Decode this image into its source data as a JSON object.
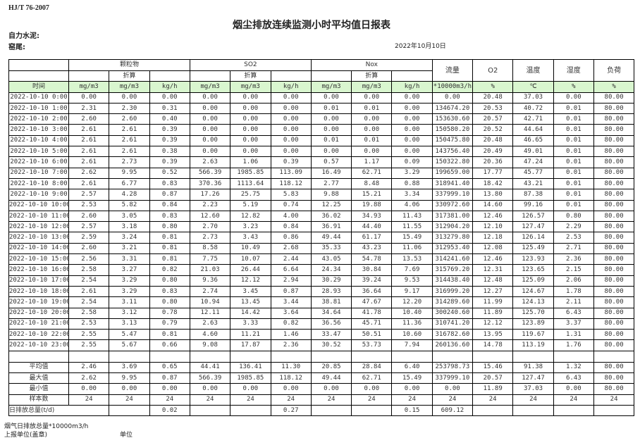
{
  "header": {
    "standard": "HJ/T  76-2007",
    "title": "烟尘排放连续监测小时平均值日报表",
    "company": "自力水泥:",
    "kiln": "窑尾:",
    "date": "2022年10月10日"
  },
  "groups": [
    "颗粒物",
    "SO2",
    "Nox"
  ],
  "converted_label": "折算",
  "single_columns": [
    "流量",
    "O2",
    "温度",
    "湿度",
    "负荷"
  ],
  "units": [
    "时间",
    "mg/m3",
    "mg/m3",
    "kg/h",
    "mg/m3",
    "mg/m3",
    "kg/h",
    "mg/m3",
    "mg/m3",
    "kg/h",
    "*10000m3/h",
    "%",
    "℃",
    "%",
    "%"
  ],
  "rows": [
    [
      "2022-10-10 0:00",
      "0.00",
      "0.00",
      "0.00",
      "0.00",
      "0.00",
      "0.00",
      "0.00",
      "0.00",
      "0.00",
      "0.00",
      "20.48",
      "37.03",
      "0.00",
      "80.00"
    ],
    [
      "2022-10-10 1:00",
      "2.31",
      "2.30",
      "0.31",
      "0.00",
      "0.00",
      "0.00",
      "0.01",
      "0.01",
      "0.00",
      "134674.20",
      "20.53",
      "40.72",
      "0.01",
      "80.00"
    ],
    [
      "2022-10-10 2:00",
      "2.60",
      "2.60",
      "0.40",
      "0.00",
      "0.00",
      "0.00",
      "0.00",
      "0.00",
      "0.00",
      "153630.60",
      "20.57",
      "42.71",
      "0.01",
      "80.00"
    ],
    [
      "2022-10-10 3:00",
      "2.61",
      "2.61",
      "0.39",
      "0.00",
      "0.00",
      "0.00",
      "0.00",
      "0.00",
      "0.00",
      "150580.20",
      "20.52",
      "44.64",
      "0.01",
      "80.00"
    ],
    [
      "2022-10-10 4:00",
      "2.61",
      "2.61",
      "0.39",
      "0.00",
      "0.00",
      "0.00",
      "0.01",
      "0.01",
      "0.00",
      "150475.80",
      "20.48",
      "46.65",
      "0.01",
      "80.00"
    ],
    [
      "2022-10-10 5:00",
      "2.61",
      "2.61",
      "0.38",
      "0.00",
      "0.00",
      "0.00",
      "0.00",
      "0.00",
      "0.00",
      "143756.40",
      "20.49",
      "49.01",
      "0.01",
      "80.00"
    ],
    [
      "2022-10-10 6:00",
      "2.61",
      "2.73",
      "0.39",
      "2.63",
      "1.06",
      "0.39",
      "0.57",
      "1.17",
      "0.09",
      "150322.80",
      "20.36",
      "47.24",
      "0.01",
      "80.00"
    ],
    [
      "2022-10-10 7:00",
      "2.62",
      "9.95",
      "0.52",
      "566.39",
      "1985.85",
      "113.09",
      "16.49",
      "62.71",
      "3.29",
      "199659.00",
      "17.77",
      "45.77",
      "0.01",
      "80.00"
    ],
    [
      "2022-10-10 8:00",
      "2.61",
      "6.77",
      "0.83",
      "370.36",
      "1113.64",
      "118.12",
      "2.77",
      "8.48",
      "0.88",
      "318941.40",
      "18.42",
      "43.21",
      "0.01",
      "80.00"
    ],
    [
      "2022-10-10 9:00",
      "2.57",
      "4.28",
      "0.87",
      "17.26",
      "25.75",
      "5.83",
      "9.88",
      "15.21",
      "3.34",
      "337999.10",
      "13.80",
      "87.38",
      "0.01",
      "80.00"
    ],
    [
      "2022-10-10 10:00",
      "2.53",
      "5.82",
      "0.84",
      "2.23",
      "5.19",
      "0.74",
      "12.25",
      "19.88",
      "4.06",
      "330972.60",
      "14.60",
      "99.16",
      "0.01",
      "80.00"
    ],
    [
      "2022-10-10 11:00",
      "2.60",
      "3.05",
      "0.83",
      "12.60",
      "12.82",
      "4.00",
      "36.02",
      "34.93",
      "11.43",
      "317381.00",
      "12.46",
      "126.57",
      "0.80",
      "80.00"
    ],
    [
      "2022-10-10 12:00",
      "2.57",
      "3.18",
      "0.80",
      "2.70",
      "3.23",
      "0.84",
      "36.91",
      "44.40",
      "11.55",
      "312904.20",
      "12.10",
      "127.47",
      "2.29",
      "80.00"
    ],
    [
      "2022-10-10 13:00",
      "2.59",
      "3.24",
      "0.81",
      "2.73",
      "3.43",
      "0.86",
      "49.44",
      "61.17",
      "15.49",
      "313279.80",
      "12.18",
      "126.14",
      "2.53",
      "80.00"
    ],
    [
      "2022-10-10 14:00",
      "2.60",
      "3.21",
      "0.81",
      "8.58",
      "10.49",
      "2.68",
      "35.33",
      "43.23",
      "11.06",
      "312953.40",
      "12.08",
      "125.49",
      "2.71",
      "80.00"
    ],
    [
      "2022-10-10 15:00",
      "2.56",
      "3.31",
      "0.81",
      "7.75",
      "10.07",
      "2.44",
      "43.05",
      "54.78",
      "13.53",
      "314241.60",
      "12.46",
      "123.93",
      "2.36",
      "80.00"
    ],
    [
      "2022-10-10 16:00",
      "2.58",
      "3.27",
      "0.82",
      "21.03",
      "26.44",
      "6.64",
      "24.34",
      "30.84",
      "7.69",
      "315769.20",
      "12.31",
      "123.65",
      "2.15",
      "80.00"
    ],
    [
      "2022-10-10 17:00",
      "2.54",
      "3.29",
      "0.80",
      "9.36",
      "12.12",
      "2.94",
      "30.29",
      "39.24",
      "9.53",
      "314438.40",
      "12.48",
      "125.09",
      "2.06",
      "80.00"
    ],
    [
      "2022-10-10 18:00",
      "2.61",
      "3.29",
      "0.83",
      "2.74",
      "3.45",
      "0.87",
      "28.93",
      "36.64",
      "9.17",
      "316999.20",
      "12.27",
      "124.67",
      "1.78",
      "80.00"
    ],
    [
      "2022-10-10 19:00",
      "2.54",
      "3.11",
      "0.80",
      "10.94",
      "13.45",
      "3.44",
      "38.81",
      "47.67",
      "12.20",
      "314289.60",
      "11.99",
      "124.13",
      "2.11",
      "80.00"
    ],
    [
      "2022-10-10 20:00",
      "2.58",
      "3.12",
      "0.78",
      "12.11",
      "14.42",
      "3.64",
      "34.64",
      "41.78",
      "10.40",
      "300240.60",
      "11.89",
      "125.70",
      "6.43",
      "80.00"
    ],
    [
      "2022-10-10 21:00",
      "2.53",
      "3.13",
      "0.79",
      "2.63",
      "3.33",
      "0.82",
      "36.56",
      "45.71",
      "11.36",
      "310741.20",
      "12.12",
      "123.89",
      "3.37",
      "80.00"
    ],
    [
      "2022-10-10 22:00",
      "2.55",
      "5.47",
      "0.81",
      "4.60",
      "11.21",
      "1.46",
      "33.47",
      "50.51",
      "10.60",
      "316782.60",
      "13.95",
      "119.67",
      "1.31",
      "80.00"
    ],
    [
      "2022-10-10 23:00",
      "2.55",
      "5.67",
      "0.66",
      "9.08",
      "17.87",
      "2.36",
      "30.52",
      "53.73",
      "7.94",
      "260136.60",
      "14.78",
      "113.19",
      "1.76",
      "80.00"
    ]
  ],
  "stats": [
    [
      "平均值",
      "2.46",
      "3.69",
      "0.65",
      "44.41",
      "136.41",
      "11.30",
      "20.85",
      "28.84",
      "6.40",
      "253798.73",
      "15.46",
      "91.38",
      "1.32",
      "80.00"
    ],
    [
      "最大值",
      "2.62",
      "9.95",
      "0.87",
      "566.39",
      "1985.85",
      "118.12",
      "49.44",
      "62.71",
      "15.49",
      "337999.10",
      "20.57",
      "127.47",
      "6.43",
      "80.00"
    ],
    [
      "最小值",
      "0.00",
      "0.00",
      "0.00",
      "0.00",
      "0.00",
      "0.00",
      "0.00",
      "0.00",
      "0.00",
      "0.00",
      "11.89",
      "37.03",
      "0.00",
      "80.00"
    ],
    [
      "样本数",
      "24",
      "24",
      "24",
      "24",
      "24",
      "24",
      "24",
      "24",
      "24",
      "24",
      "24",
      "24",
      "24",
      "24"
    ]
  ],
  "daily_total": {
    "label": "日排放总量(t/d)",
    "values": [
      "",
      "0.02",
      "",
      "",
      "0.27",
      "",
      "",
      "0.15",
      "609.12",
      "",
      "",
      "",
      ""
    ]
  },
  "footer": {
    "flue_gas_total": "烟气日排放总量*10000m3/h",
    "reporting_unit": "上报单位(盖章)",
    "unit": "单位"
  },
  "colors": {
    "header_green": "#d9f6cf"
  }
}
